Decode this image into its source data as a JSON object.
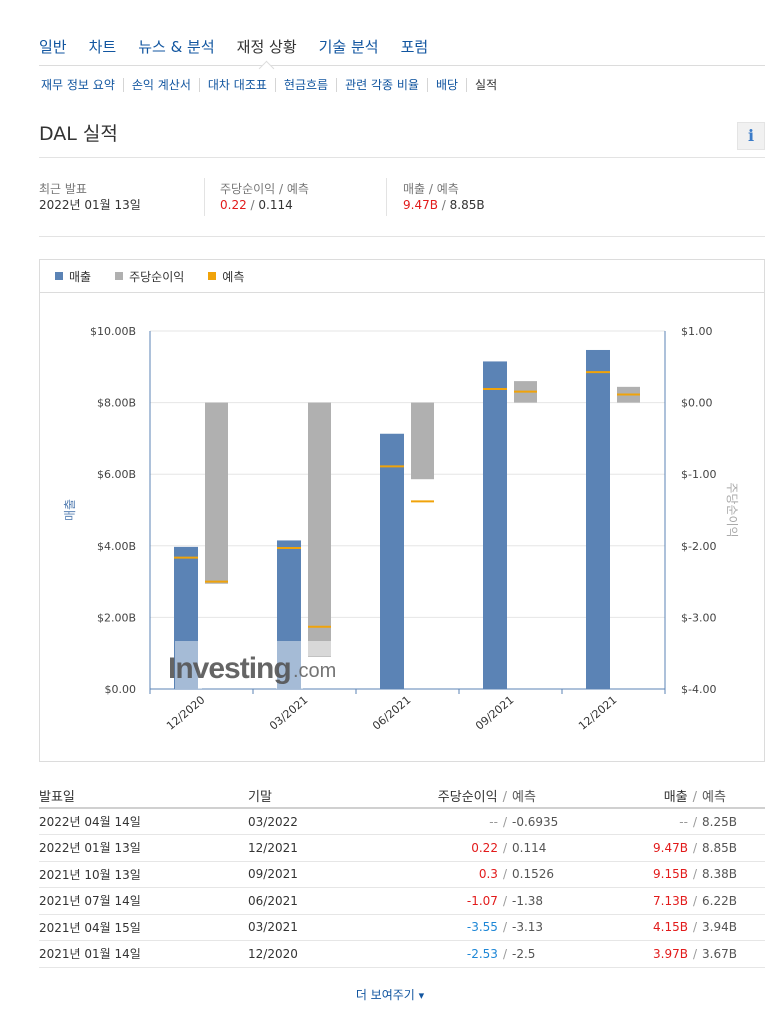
{
  "main_nav": [
    "일반",
    "차트",
    "뉴스 & 분석",
    "재정 상황",
    "기술 분석",
    "포럼"
  ],
  "sub_nav": [
    "재무 정보 요약",
    "손익 계산서",
    "대차 대조표",
    "현금흐름",
    "관련 각종 비율",
    "배당",
    "실적"
  ],
  "page_title": "DAL 실적",
  "info_icon": "i",
  "summary": {
    "latest_label": "최근 발표",
    "latest_value": "2022년 01월 13일",
    "eps_label": "주당순이익 / 예측",
    "eps_actual": "0.22",
    "eps_sep": " / ",
    "eps_forecast": "0.114",
    "rev_label": "매출 / 예측",
    "rev_actual": "9.47B",
    "rev_sep": " / ",
    "rev_forecast": "8.85B"
  },
  "colors": {
    "revenue": "#5b83b5",
    "eps": "#b0b0b0",
    "forecast": "#f0a30a",
    "red": "#e21b1b",
    "blue": "#1e87d6"
  },
  "chart_data": {
    "type": "bar",
    "legend": [
      "매출",
      "주당순이익",
      "예측"
    ],
    "categories": [
      "12/2020",
      "03/2021",
      "06/2021",
      "09/2021",
      "12/2021"
    ],
    "revenue": {
      "name": "매출",
      "values": [
        3.97,
        4.15,
        7.13,
        9.15,
        9.47
      ],
      "forecast": [
        3.67,
        3.94,
        6.22,
        8.38,
        8.85
      ]
    },
    "eps": {
      "name": "주당순이익",
      "values": [
        -2.53,
        -3.55,
        -1.07,
        0.3,
        0.22
      ],
      "forecast": [
        -2.5,
        -3.13,
        -1.38,
        0.1526,
        0.114
      ]
    },
    "left_axis": {
      "label": "매출",
      "min": 0,
      "max": 10,
      "ticks": [
        "$0.00",
        "$2.00B",
        "$4.00B",
        "$6.00B",
        "$8.00B",
        "$10.00B"
      ]
    },
    "right_axis": {
      "label": "주당순이익",
      "min": -4,
      "max": 1,
      "ticks": [
        "$-4.00",
        "$-3.00",
        "$-2.00",
        "$-1.00",
        "$0.00",
        "$1.00"
      ]
    },
    "watermark": "Investing.com",
    "grid": true
  },
  "table": {
    "headers": {
      "date": "발표일",
      "period": "기말",
      "eps": "주당순이익",
      "sep": "/",
      "fc": "예측",
      "rev": "매출"
    },
    "rows": [
      {
        "date": "2022년 04월 14일",
        "period": "03/2022",
        "eps": "--",
        "eps_color": "none",
        "eps_fc": "-0.6935",
        "rev": "--",
        "rev_color": "none",
        "rev_fc": "8.25B"
      },
      {
        "date": "2022년 01월 13일",
        "period": "12/2021",
        "eps": "0.22",
        "eps_color": "red",
        "eps_fc": "0.114",
        "rev": "9.47B",
        "rev_color": "red",
        "rev_fc": "8.85B"
      },
      {
        "date": "2021년 10월 13일",
        "period": "09/2021",
        "eps": "0.3",
        "eps_color": "red",
        "eps_fc": "0.1526",
        "rev": "9.15B",
        "rev_color": "red",
        "rev_fc": "8.38B"
      },
      {
        "date": "2021년 07월 14일",
        "period": "06/2021",
        "eps": "-1.07",
        "eps_color": "red",
        "eps_fc": "-1.38",
        "rev": "7.13B",
        "rev_color": "red",
        "rev_fc": "6.22B"
      },
      {
        "date": "2021년 04월 15일",
        "period": "03/2021",
        "eps": "-3.55",
        "eps_color": "blue",
        "eps_fc": "-3.13",
        "rev": "4.15B",
        "rev_color": "red",
        "rev_fc": "3.94B"
      },
      {
        "date": "2021년 01월 14일",
        "period": "12/2020",
        "eps": "-2.53",
        "eps_color": "blue",
        "eps_fc": "-2.5",
        "rev": "3.97B",
        "rev_color": "red",
        "rev_fc": "3.67B"
      }
    ]
  },
  "show_more": "더 보여주기",
  "show_more_icon": "▾"
}
